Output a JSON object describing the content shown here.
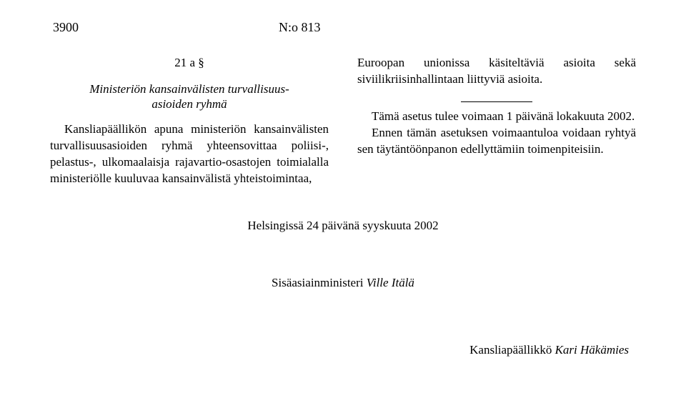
{
  "header": {
    "page_number": "3900",
    "reference": "N:o 813"
  },
  "left_column": {
    "section_number": "21 a §",
    "section_title_line1": "Ministeriön kansainvälisten turvallisuus-",
    "section_title_line2": "asioiden ryhmä",
    "paragraph": "Kansliapäällikön apuna ministeriön kansainvälisten turvallisuusasioiden ryhmä yhteensovittaa poliisi-, pelastus-, ulkomaalaisja rajavartio-osastojen toimialalla ministeriölle kuuluvaa kansainvälistä yhteistoimintaa,"
  },
  "right_column": {
    "paragraph1": "Euroopan unionissa käsiteltäviä asioita sekä siviilikriisinhallintaan liittyviä asioita.",
    "paragraph2": "Tämä asetus tulee voimaan 1 päivänä lokakuuta 2002.",
    "paragraph3": "Ennen tämän asetuksen voimaantuloa voidaan ryhtyä sen täytäntöönpanon edellyttämiin toimenpiteisiin."
  },
  "date_line": "Helsingissä 24 päivänä syyskuuta 2002",
  "minister_label": "Sisäasiainministeri",
  "minister_name": "Ville Itälä",
  "chief_label": "Kansliapäällikkö",
  "chief_name": "Kari Häkämies"
}
